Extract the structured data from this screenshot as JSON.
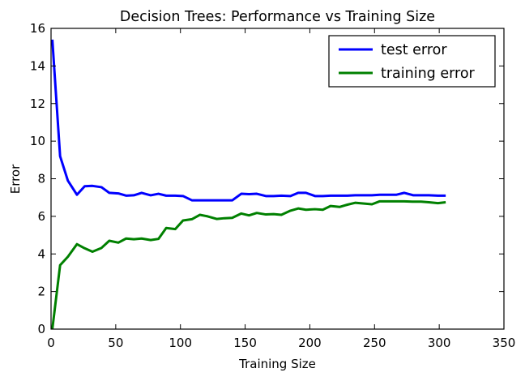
{
  "chart_data": {
    "type": "line",
    "title": "Decision Trees: Performance vs Training Size",
    "xlabel": "Training Size",
    "ylabel": "Error",
    "xlim": [
      0,
      350
    ],
    "ylim": [
      0,
      16
    ],
    "xticks": [
      "0",
      "50",
      "100",
      "150",
      "200",
      "250",
      "300",
      "350"
    ],
    "yticks": [
      "0",
      "2",
      "4",
      "6",
      "8",
      "10",
      "12",
      "14",
      "16"
    ],
    "grid": false,
    "legend_position": "top-right",
    "series": [
      {
        "name": "test error",
        "color": "#0000ff",
        "x": [
          1,
          7,
          13,
          20,
          26,
          32,
          39,
          45,
          52,
          58,
          64,
          70,
          77,
          83,
          89,
          96,
          102,
          109,
          115,
          121,
          128,
          134,
          140,
          147,
          153,
          159,
          166,
          172,
          178,
          185,
          191,
          197,
          204,
          210,
          216,
          223,
          229,
          235,
          242,
          248,
          254,
          261,
          267,
          273,
          280,
          286,
          292,
          299,
          305
        ],
        "y": [
          15.4,
          9.2,
          7.9,
          7.15,
          7.6,
          7.62,
          7.55,
          7.25,
          7.22,
          7.1,
          7.12,
          7.25,
          7.12,
          7.2,
          7.1,
          7.1,
          7.08,
          6.85,
          6.85,
          6.85,
          6.85,
          6.85,
          6.85,
          7.2,
          7.18,
          7.2,
          7.08,
          7.08,
          7.1,
          7.08,
          7.25,
          7.25,
          7.08,
          7.08,
          7.1,
          7.1,
          7.1,
          7.12,
          7.12,
          7.12,
          7.15,
          7.15,
          7.15,
          7.25,
          7.12,
          7.12,
          7.12,
          7.1,
          7.1
        ]
      },
      {
        "name": "training error",
        "color": "#008000",
        "x": [
          1,
          7,
          13,
          20,
          26,
          32,
          39,
          45,
          52,
          58,
          64,
          70,
          77,
          83,
          89,
          96,
          102,
          109,
          115,
          121,
          128,
          134,
          140,
          147,
          153,
          159,
          166,
          172,
          178,
          185,
          191,
          197,
          204,
          210,
          216,
          223,
          229,
          235,
          242,
          248,
          254,
          261,
          267,
          273,
          280,
          286,
          292,
          299,
          305
        ],
        "y": [
          0.0,
          3.4,
          3.85,
          4.52,
          4.3,
          4.12,
          4.32,
          4.7,
          4.6,
          4.82,
          4.78,
          4.82,
          4.74,
          4.8,
          5.38,
          5.32,
          5.78,
          5.85,
          6.08,
          6.0,
          5.86,
          5.9,
          5.92,
          6.15,
          6.05,
          6.18,
          6.1,
          6.12,
          6.08,
          6.3,
          6.42,
          6.35,
          6.38,
          6.35,
          6.55,
          6.5,
          6.62,
          6.72,
          6.68,
          6.64,
          6.8,
          6.8,
          6.8,
          6.8,
          6.78,
          6.78,
          6.75,
          6.7,
          6.75
        ]
      }
    ]
  }
}
